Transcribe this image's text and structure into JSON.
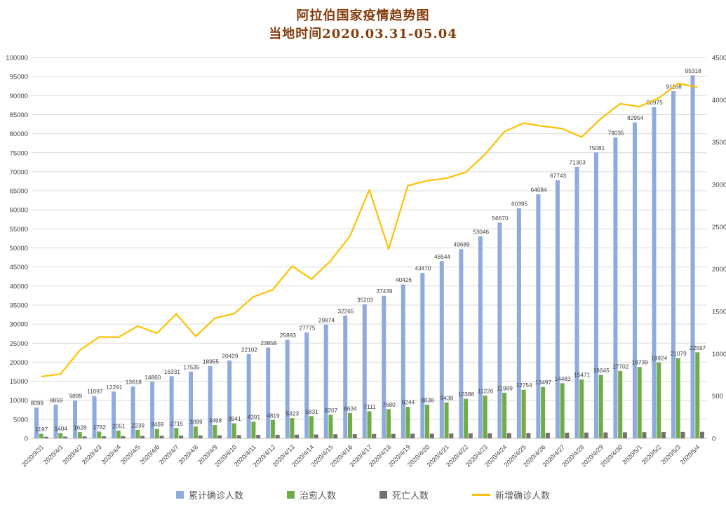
{
  "title": "阿拉伯国家疫情趋势图",
  "subtitle": "当地时间2020.03.31-05.04",
  "colors": {
    "title": "#843C0C",
    "confirmed": "#8FAADC",
    "cured": "#70AD47",
    "deaths": "#767171",
    "new_cases": "#FFC000",
    "grid": "#D9D9D9",
    "axis_text": "#404040",
    "bar_label": "#3F3F3F",
    "legend_text": "#595959"
  },
  "chart_data": {
    "type": "bar",
    "subtype": "grouped-bars-with-secondary-axis-line",
    "title": "阿拉伯国家疫情趋势图",
    "subtitle": "当地时间2020.03.31-05.04",
    "grid": true,
    "legend_position": "bottom",
    "categories": [
      "2020/3/31",
      "2020/4/1",
      "2020/4/2",
      "2020/4/3",
      "2020/4/4",
      "2020/4/5",
      "2020/4/6",
      "2020/4/7",
      "2020/4/8",
      "2020/4/9",
      "2020/4/10",
      "2020/4/11",
      "2020/4/12",
      "2020/4/13",
      "2020/4/14",
      "2020/4/15",
      "2020/4/16",
      "2020/4/17",
      "2020/4/18",
      "2020/4/19",
      "2020/4/20",
      "2020/4/21",
      "2020/4/22",
      "2020/4/23",
      "2020/4/24",
      "2020/4/25",
      "2020/4/26",
      "2020/4/27",
      "2020/4/28",
      "2020/4/29",
      "2020/4/30",
      "2020/5/1",
      "2020/5/2",
      "2020/5/3",
      "2020/5/4"
    ],
    "series": [
      {
        "name": "累计确诊人数",
        "type": "bar",
        "axis": "left",
        "color_key": "confirmed",
        "data_labels": true,
        "values": [
          8099,
          8859,
          9899,
          11097,
          12291,
          13618,
          14860,
          16331,
          17535,
          18955,
          20429,
          22102,
          23858,
          25893,
          27775,
          29874,
          32265,
          35203,
          37439,
          40426,
          43470,
          46544,
          49689,
          53046,
          56670,
          60395,
          64084,
          67743,
          71303,
          75081,
          79035,
          82954,
          86975,
          91168,
          95318
        ]
      },
      {
        "name": "治愈人数",
        "type": "bar",
        "axis": "left",
        "color_key": "cured",
        "data_labels": true,
        "values": [
          1197,
          1404,
          1628,
          1782,
          2051,
          2239,
          2469,
          2715,
          3099,
          3498,
          3941,
          4391,
          4819,
          5323,
          5831,
          6207,
          6634,
          7111,
          7680,
          8244,
          8838,
          9438,
          10388,
          11226,
          11989,
          12754,
          13497,
          14483,
          15471,
          16645,
          17702,
          18739,
          19924,
          21079,
          22597
        ]
      },
      {
        "name": "死亡人数",
        "type": "bar",
        "axis": "left",
        "color_key": "deaths",
        "data_labels": false,
        "values": [
          420,
          460,
          500,
          540,
          580,
          625,
          670,
          715,
          760,
          805,
          850,
          895,
          935,
          975,
          1015,
          1055,
          1095,
          1135,
          1170,
          1205,
          1240,
          1275,
          1310,
          1345,
          1380,
          1415,
          1450,
          1485,
          1520,
          1555,
          1590,
          1625,
          1660,
          1695,
          1730
        ]
      },
      {
        "name": "新增确诊人数",
        "type": "line",
        "axis": "right",
        "color_key": "new_cases",
        "data_labels": false,
        "values": [
          730,
          760,
          1040,
          1198,
          1194,
          1327,
          1242,
          1471,
          1204,
          1420,
          1474,
          1673,
          1756,
          2035,
          1882,
          2099,
          2391,
          2938,
          2236,
          2987,
          3044,
          3074,
          3145,
          3357,
          3624,
          3725,
          3689,
          3659,
          3560,
          3778,
          3954,
          3919,
          4021,
          4193,
          4150
        ]
      }
    ],
    "left_axis": {
      "min": 0,
      "max": 100000,
      "step": 5000,
      "ticks": [
        0,
        5000,
        10000,
        15000,
        20000,
        25000,
        30000,
        35000,
        40000,
        45000,
        50000,
        55000,
        60000,
        65000,
        70000,
        75000,
        80000,
        85000,
        90000,
        95000,
        100000
      ]
    },
    "right_axis": {
      "min": 0,
      "max": 4500,
      "step": 500,
      "ticks": [
        0,
        500,
        1000,
        1500,
        2000,
        2500,
        3000,
        3500,
        4000,
        4500
      ]
    }
  }
}
